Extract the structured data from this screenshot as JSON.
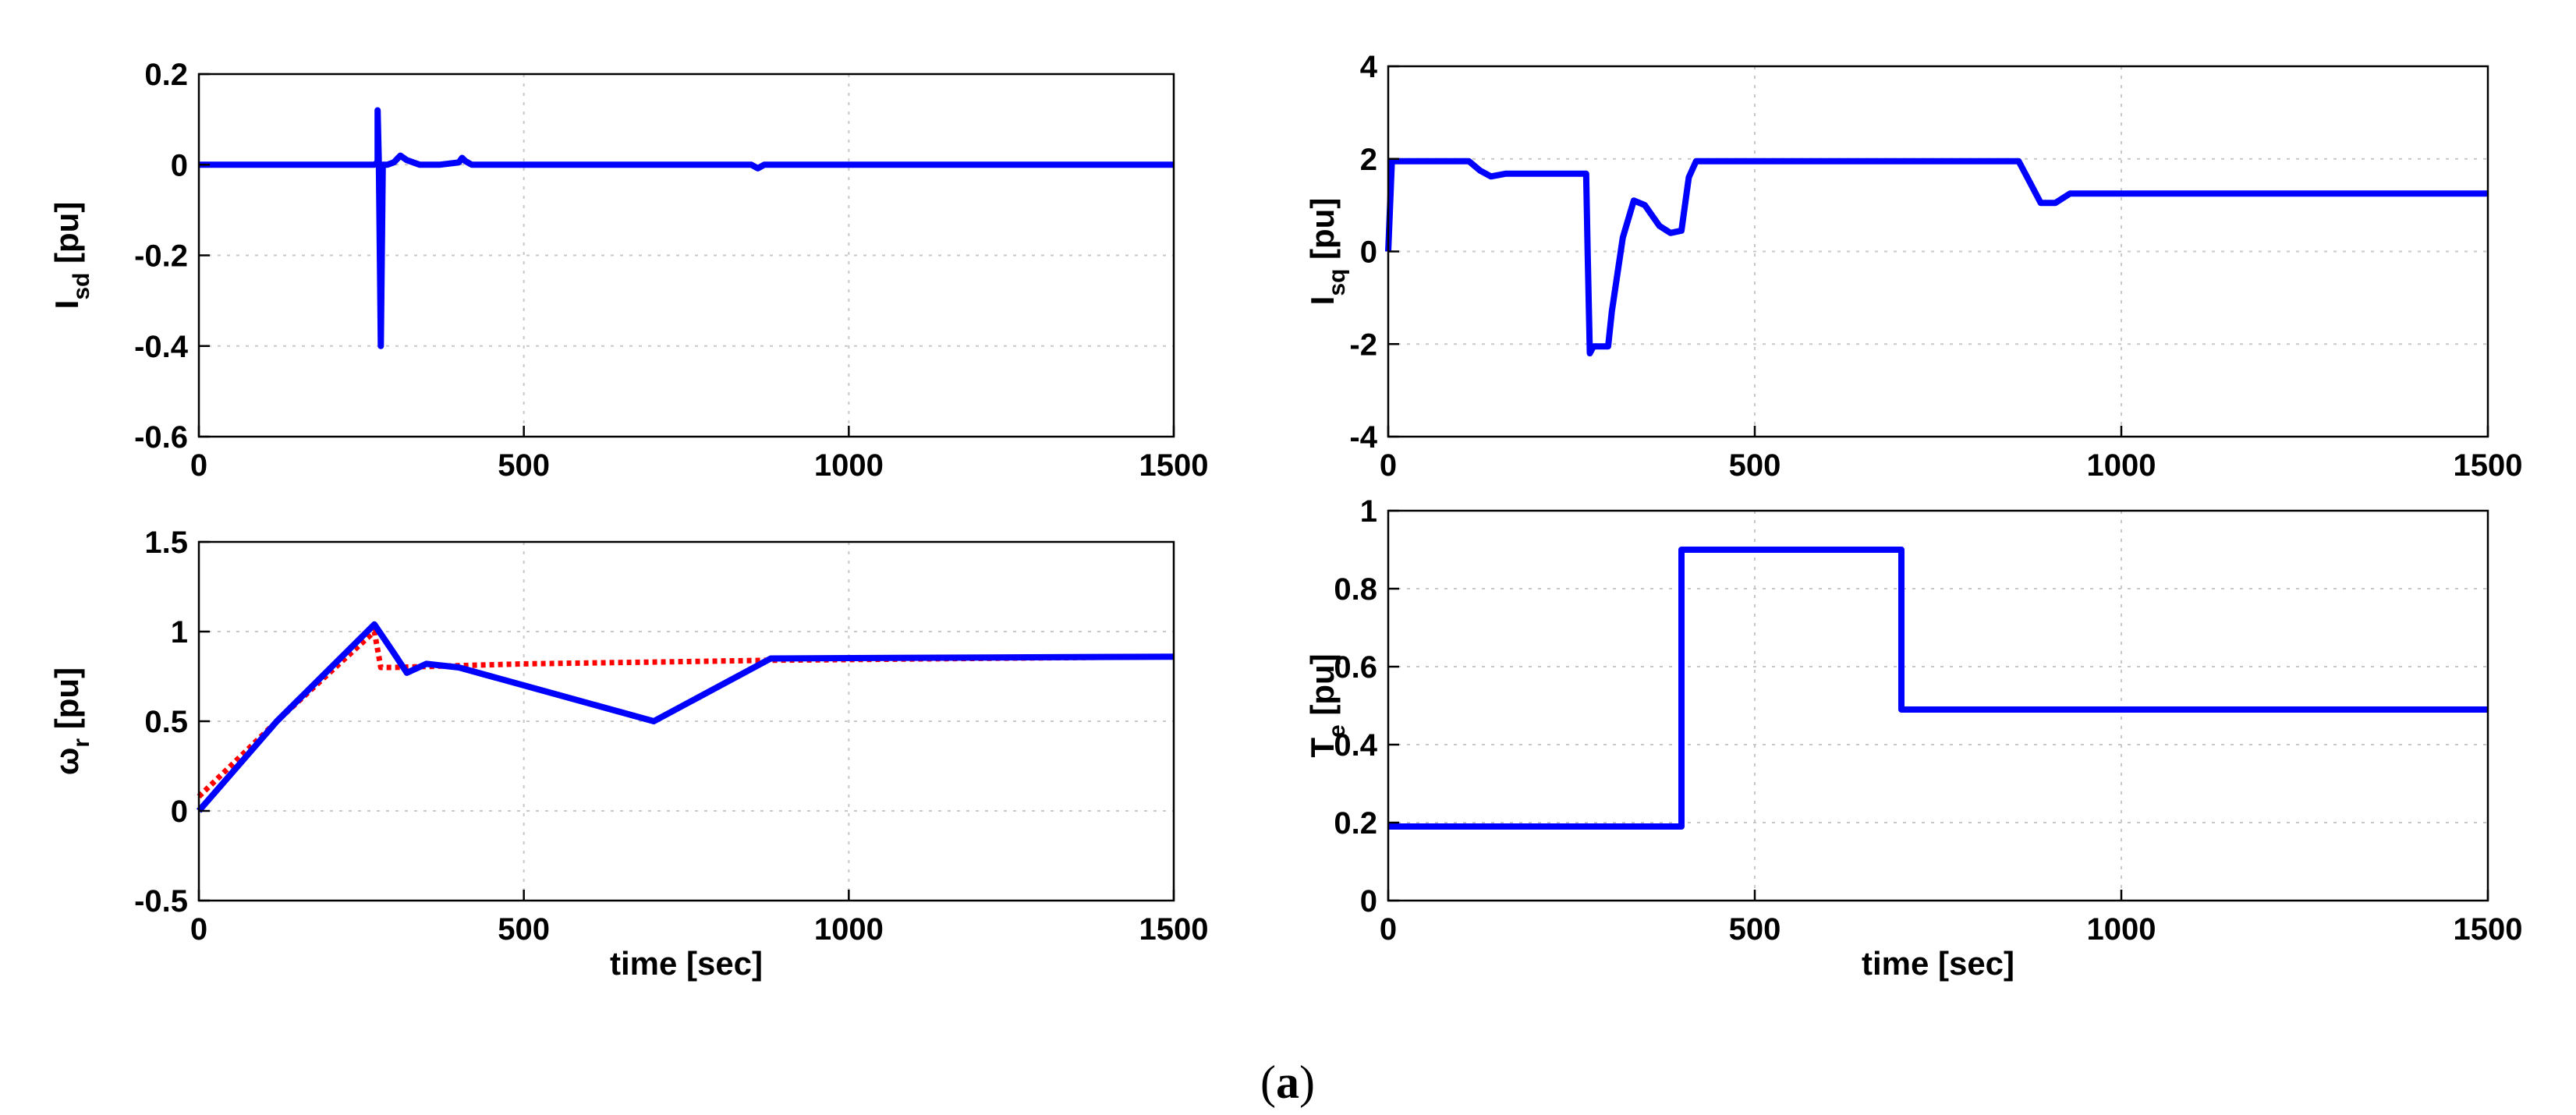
{
  "caption": {
    "open": "(",
    "letter": "a",
    "close": ")"
  },
  "chart_data": [
    {
      "type": "line",
      "panel": "top-left",
      "ylabel_main": "I",
      "ylabel_sub": "sd",
      "ylabel_unit": " [pu]",
      "xlabel": "",
      "xlim": [
        0,
        1500
      ],
      "ylim": [
        -0.6,
        0.2
      ],
      "xticks": [
        0,
        500,
        1000,
        1500
      ],
      "yticks": [
        -0.6,
        -0.4,
        -0.2,
        0,
        0.2
      ],
      "ytick_labels": [
        "-0.6",
        "-0.4",
        "-0.2",
        "0",
        "0.2"
      ],
      "grid": true,
      "series": [
        {
          "color": "#0000ff",
          "x": [
            0,
            100,
            200,
            270,
            275,
            275,
            277,
            280,
            280,
            283,
            290,
            300,
            310,
            320,
            340,
            370,
            400,
            405,
            410,
            420,
            500,
            850,
            860,
            870,
            900,
            1500
          ],
          "y": [
            0,
            0,
            0,
            0,
            0.005,
            0.12,
            0.0,
            -0.4,
            -0.4,
            0.0,
            0.0,
            0.005,
            0.02,
            0.01,
            0.0,
            0.0,
            0.005,
            0.015,
            0.008,
            0.0,
            0,
            0,
            -0.008,
            0,
            0,
            0
          ]
        }
      ]
    },
    {
      "type": "line",
      "panel": "top-right",
      "ylabel_main": "I",
      "ylabel_sub": "sq",
      "ylabel_unit": " [pu]",
      "xlabel": "",
      "xlim": [
        0,
        1500
      ],
      "ylim": [
        -4,
        4
      ],
      "xticks": [
        0,
        500,
        1000,
        1500
      ],
      "yticks": [
        -4,
        -2,
        0,
        2,
        4
      ],
      "ytick_labels": [
        "-4",
        "-2",
        "0",
        "2",
        "4"
      ],
      "grid": true,
      "series": [
        {
          "color": "#0000ff",
          "x": [
            0,
            5,
            110,
            125,
            140,
            160,
            200,
            270,
            272,
            275,
            280,
            300,
            305,
            320,
            335,
            350,
            370,
            385,
            400,
            410,
            420,
            500,
            860,
            875,
            890,
            910,
            930,
            1000,
            1500
          ],
          "y": [
            0,
            1.95,
            1.95,
            1.75,
            1.62,
            1.68,
            1.68,
            1.68,
            0.0,
            -2.2,
            -2.05,
            -2.05,
            -1.3,
            0.3,
            1.1,
            1.0,
            0.55,
            0.4,
            0.45,
            1.6,
            1.95,
            1.95,
            1.95,
            1.5,
            1.05,
            1.05,
            1.25,
            1.25,
            1.25
          ]
        }
      ]
    },
    {
      "type": "line",
      "panel": "bottom-left",
      "ylabel_main": "ω",
      "ylabel_sub": "r",
      "ylabel_unit": " [pu]",
      "xlabel": "time [sec]",
      "xlim": [
        0,
        1500
      ],
      "ylim": [
        -0.5,
        1.5
      ],
      "xticks": [
        0,
        500,
        1000,
        1500
      ],
      "yticks": [
        -0.5,
        0,
        0.5,
        1,
        1.5
      ],
      "ytick_labels": [
        "-0.5",
        "0",
        "0.5",
        "1",
        "1.5"
      ],
      "grid": true,
      "series": [
        {
          "color": "#ff0000",
          "dashed": true,
          "x": [
            0,
            120,
            270,
            280,
            300,
            500,
            700,
            880,
            1500
          ],
          "y": [
            0.08,
            0.5,
            1.0,
            0.8,
            0.8,
            0.82,
            0.83,
            0.84,
            0.86
          ]
        },
        {
          "color": "#0000ff",
          "x": [
            0,
            120,
            270,
            300,
            320,
            350,
            400,
            700,
            880,
            1500
          ],
          "y": [
            0,
            0.5,
            1.04,
            0.88,
            0.77,
            0.82,
            0.8,
            0.5,
            0.85,
            0.86
          ]
        }
      ]
    },
    {
      "type": "line",
      "panel": "bottom-right",
      "ylabel_main": "T",
      "ylabel_sub": "e",
      "ylabel_unit": " [pu]",
      "xlabel": "time [sec]",
      "xlim": [
        0,
        1500
      ],
      "ylim": [
        0,
        1
      ],
      "xticks": [
        0,
        500,
        1000,
        1500
      ],
      "yticks": [
        0,
        0.2,
        0.4,
        0.6,
        0.8,
        1
      ],
      "ytick_labels": [
        "0",
        "0.2",
        "0.4",
        "0.6",
        "0.8",
        "1"
      ],
      "grid": true,
      "series": [
        {
          "color": "#0000ff",
          "x": [
            0,
            400,
            400,
            700,
            700,
            1500
          ],
          "y": [
            0.19,
            0.19,
            0.9,
            0.9,
            0.49,
            0.49
          ]
        }
      ]
    }
  ]
}
